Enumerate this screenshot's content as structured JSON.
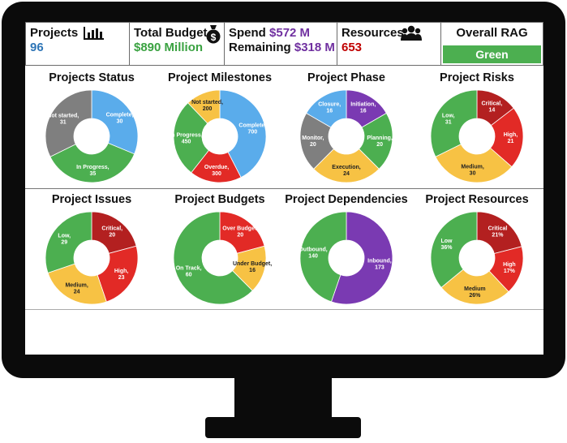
{
  "kpis": {
    "projects": {
      "label": "Projects",
      "value": "96"
    },
    "budget": {
      "label": "Total Budget",
      "value": "$890 Million"
    },
    "spend": {
      "spend_label": "Spend",
      "spend_value": "$572 M",
      "remaining_label": "Remaining",
      "remaining_value": "$318 M"
    },
    "resources": {
      "label": "Resources",
      "value": "653"
    },
    "rag": {
      "label": "Overall RAG",
      "value": "Green"
    }
  },
  "icons": {
    "projects": "bar-chart-icon",
    "budget": "money-bag-icon",
    "resources": "people-icon"
  },
  "colors": {
    "blue": "#5aaceb",
    "green": "#4caf50",
    "red": "#e22a26",
    "yellow": "#f7c244",
    "gray": "#7f7f7f",
    "purple": "#7a3ab2",
    "darkred": "#b32020"
  },
  "chart_data": [
    {
      "type": "pie",
      "title": "Projects Status",
      "labels": [
        "Complete",
        "In Progress",
        "Not started"
      ],
      "values": [
        30,
        35,
        31
      ],
      "slice_labels": [
        "Complete, 30",
        "In Progress, 35",
        "Not started, 31"
      ],
      "colors": [
        "#5aaceb",
        "#4caf50",
        "#7f7f7f"
      ]
    },
    {
      "type": "pie",
      "title": "Project Milestones",
      "labels": [
        "Complete",
        "Overdue",
        "In Progress",
        "Not started"
      ],
      "values": [
        700,
        300,
        450,
        200
      ],
      "slice_labels": [
        "Complete, 700",
        "Overdue, 300",
        "In Progress, 450",
        "Not started, 200"
      ],
      "colors": [
        "#5aaceb",
        "#e22a26",
        "#4caf50",
        "#f7c244"
      ]
    },
    {
      "type": "pie",
      "title": "Project Phase",
      "labels": [
        "Initiation",
        "Planning",
        "Execution",
        "Monitor",
        "Closure"
      ],
      "values": [
        16,
        20,
        24,
        20,
        16
      ],
      "slice_labels": [
        "Initiation, 16",
        "Planning, 20",
        "Execution, 24",
        "Monitor, 20",
        "Closure, 16"
      ],
      "colors": [
        "#7a3ab2",
        "#4caf50",
        "#f7c244",
        "#7f7f7f",
        "#5aaceb"
      ]
    },
    {
      "type": "pie",
      "title": "Project Risks",
      "labels": [
        "Critical",
        "High",
        "Medium",
        "Low"
      ],
      "values": [
        14,
        21,
        30,
        31
      ],
      "slice_labels": [
        "Critical, 14",
        "High, 21",
        "Medium, 30",
        "Low, 31"
      ],
      "colors": [
        "#b32020",
        "#e22a26",
        "#f7c244",
        "#4caf50"
      ]
    },
    {
      "type": "pie",
      "title": "Project Issues",
      "labels": [
        "Critical",
        "High",
        "Medium",
        "Low"
      ],
      "values": [
        20,
        23,
        24,
        29
      ],
      "slice_labels": [
        "Critical, 20",
        "High, 23",
        "Medium, 24",
        "Low, 29"
      ],
      "colors": [
        "#b32020",
        "#e22a26",
        "#f7c244",
        "#4caf50"
      ]
    },
    {
      "type": "pie",
      "title": "Project Budgets",
      "labels": [
        "Over Budget",
        "Under Budget",
        "On Track"
      ],
      "values": [
        20,
        16,
        60
      ],
      "slice_labels": [
        "Over Budget, 20",
        "Under Budget, 16",
        "On Track, 60"
      ],
      "colors": [
        "#e22a26",
        "#f7c244",
        "#4caf50"
      ]
    },
    {
      "type": "pie",
      "title": "Project Dependencies",
      "labels": [
        "Inbound",
        "Outbound"
      ],
      "values": [
        173,
        140
      ],
      "slice_labels": [
        "Inbound, 173",
        "Outbound, 140"
      ],
      "colors": [
        "#7a3ab2",
        "#4caf50"
      ]
    },
    {
      "type": "pie",
      "title": "Project Resources",
      "labels": [
        "Critical",
        "High",
        "Medium",
        "Low"
      ],
      "values": [
        21,
        17,
        26,
        36
      ],
      "slice_labels": [
        "Critical 21%",
        "High 17%",
        "Medium 26%",
        "Low 36%"
      ],
      "colors": [
        "#b32020",
        "#e22a26",
        "#f7c244",
        "#4caf50"
      ]
    }
  ]
}
